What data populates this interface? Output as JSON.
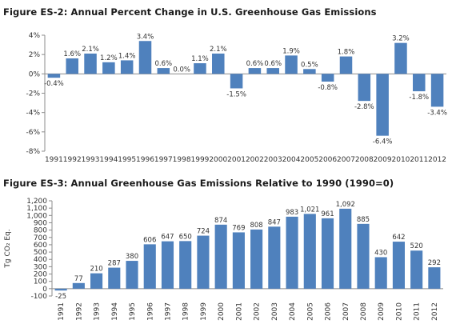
{
  "bar_color": "#4f81bd",
  "chart_data": [
    {
      "type": "bar",
      "title": "Figure ES-2:  Annual Percent Change in U.S. Greenhouse Gas Emissions",
      "categories": [
        "1991",
        "1992",
        "1993",
        "1994",
        "1995",
        "1996",
        "1997",
        "1998",
        "1999",
        "2000",
        "2001",
        "2002",
        "2003",
        "2004",
        "2005",
        "2006",
        "2007",
        "2008",
        "2009",
        "2010",
        "2011",
        "2012"
      ],
      "values": [
        -0.4,
        1.6,
        2.1,
        1.2,
        1.4,
        3.4,
        0.6,
        0.0,
        1.1,
        2.1,
        -1.5,
        0.6,
        0.6,
        1.9,
        0.5,
        -0.8,
        1.8,
        -2.8,
        -6.4,
        3.2,
        -1.8,
        -3.4
      ],
      "labels": [
        "-0.4%",
        "1.6%",
        "2.1%",
        "1.2%",
        "1.4%",
        "3.4%",
        "0.6%",
        "0.0%",
        "1.1%",
        "2.1%",
        "-1.5%",
        "0.6%",
        "0.6%",
        "1.9%",
        "0.5%",
        "-0.8%",
        "1.8%",
        "-2.8%",
        "-6.4%",
        "3.2%",
        "-1.8%",
        "-3.4%"
      ],
      "yticks": [
        4,
        2,
        0,
        -2,
        -4,
        -6,
        -8
      ],
      "ytick_labels": [
        "4%",
        "2%",
        "0%",
        "-2%",
        "-4%",
        "-6%",
        "-8%"
      ],
      "ylim": [
        -8,
        4
      ],
      "xlabel": "",
      "ylabel": "",
      "grid": false,
      "xtick_rotation": 0
    },
    {
      "type": "bar",
      "title": "Figure ES-3:  Annual Greenhouse Gas Emissions Relative to 1990 (1990=0)",
      "categories": [
        "1991",
        "1992",
        "1993",
        "1994",
        "1995",
        "1996",
        "1997",
        "1998",
        "1999",
        "2000",
        "2001",
        "2002",
        "2003",
        "2004",
        "2005",
        "2006",
        "2007",
        "2008",
        "2009",
        "2010",
        "2011",
        "2012"
      ],
      "values": [
        -25,
        77,
        210,
        287,
        380,
        606,
        647,
        650,
        724,
        874,
        769,
        808,
        847,
        983,
        1021,
        961,
        1092,
        885,
        430,
        642,
        520,
        292
      ],
      "labels": [
        "-25",
        "77",
        "210",
        "287",
        "380",
        "606",
        "647",
        "650",
        "724",
        "874",
        "769",
        "808",
        "847",
        "983",
        "1,021",
        "961",
        "1,092",
        "885",
        "430",
        "642",
        "520",
        "292"
      ],
      "yticks": [
        1200,
        1100,
        1000,
        900,
        800,
        700,
        600,
        500,
        400,
        300,
        200,
        100,
        0,
        -100
      ],
      "ytick_labels": [
        "1,200",
        "1,100",
        "1,000",
        "900",
        "800",
        "700",
        "600",
        "500",
        "400",
        "300",
        "200",
        "100",
        "0",
        "-100"
      ],
      "ylim": [
        -100,
        1200
      ],
      "xlabel": "",
      "ylabel": "Tg CO₂ Eq.",
      "grid": false,
      "xtick_rotation": -90
    }
  ]
}
